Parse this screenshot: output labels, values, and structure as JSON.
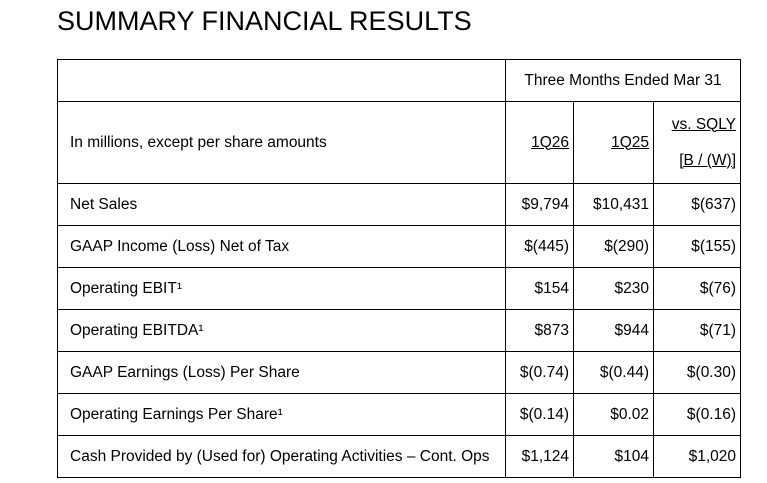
{
  "title": "SUMMARY FINANCIAL RESULTS",
  "table": {
    "period_header": "Three Months Ended Mar 31",
    "row_header_label": "In millions, except per share amounts",
    "col_current": "1Q26",
    "col_prior": "1Q25",
    "col_vs_line1": "vs. SQLY",
    "col_vs_line2": "[B / (W)]",
    "rows": [
      {
        "label": "Net Sales",
        "current": "$9,794",
        "prior": "$10,431",
        "vs": "$(637)"
      },
      {
        "label": "GAAP Income (Loss) Net of Tax",
        "current": "$(445)",
        "prior": "$(290)",
        "vs": "$(155)"
      },
      {
        "label": "Operating EBIT¹",
        "current": "$154",
        "prior": "$230",
        "vs": "$(76)"
      },
      {
        "label": "Operating EBITDA¹",
        "current": "$873",
        "prior": "$944",
        "vs": "$(71)"
      },
      {
        "label": "GAAP Earnings (Loss) Per Share",
        "current": "$(0.74)",
        "prior": "$(0.44)",
        "vs": "$(0.30)"
      },
      {
        "label": "Operating Earnings Per Share¹",
        "current": "$(0.14)",
        "prior": "$0.02",
        "vs": "$(0.16)"
      },
      {
        "label": "Cash Provided by (Used for) Operating Activities – Cont. Ops",
        "current": "$1,124",
        "prior": "$104",
        "vs": "$1,020"
      }
    ]
  }
}
